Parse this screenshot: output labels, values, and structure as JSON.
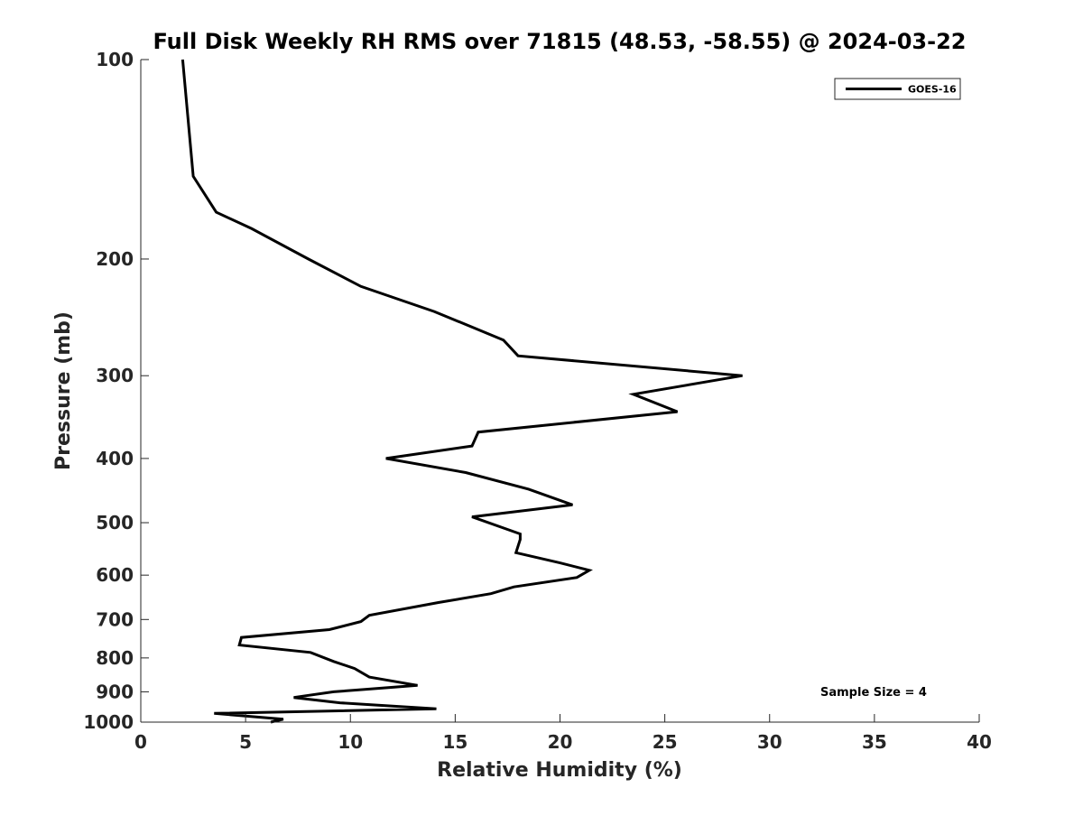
{
  "chart_data": {
    "type": "line",
    "title": "Full Disk Weekly RH RMS over 71815 (48.53, -58.55) @ 2024-03-22",
    "xlabel": "Relative Humidity (%)",
    "ylabel": "Pressure (mb)",
    "xlim": [
      0,
      40
    ],
    "ylim": [
      100,
      1000
    ],
    "y_scale": "log",
    "y_inverted": true,
    "x_ticks": [
      0,
      5,
      10,
      15,
      20,
      25,
      30,
      35,
      40
    ],
    "y_ticks": [
      100,
      200,
      300,
      400,
      500,
      600,
      700,
      800,
      900,
      1000
    ],
    "grid": false,
    "legend_position": "top-right",
    "series": [
      {
        "name": "GOES-16",
        "color": "#000000",
        "x": [
          2.0,
          2.5,
          3.6,
          5.3,
          8.0,
          10.5,
          14.0,
          17.3,
          18.0,
          28.7,
          23.5,
          25.6,
          16.1,
          15.8,
          11.7,
          15.5,
          18.5,
          20.6,
          15.8,
          18.1,
          18.1,
          17.9,
          20.0,
          21.4,
          20.8,
          17.8,
          16.7,
          14.2,
          10.9,
          10.5,
          9.0,
          4.8,
          4.7,
          8.1,
          9.2,
          10.2,
          10.9,
          13.2,
          9.2,
          7.3,
          9.5,
          14.1,
          3.5,
          6.8,
          6.2
        ],
        "y": [
          100,
          150,
          170,
          180,
          200,
          220,
          240,
          265,
          280,
          300,
          320,
          340,
          365,
          383,
          400,
          420,
          445,
          470,
          490,
          520,
          530,
          555,
          575,
          590,
          605,
          625,
          640,
          660,
          690,
          705,
          725,
          745,
          765,
          785,
          810,
          830,
          855,
          880,
          900,
          918,
          935,
          955,
          970,
          990,
          1000
        ]
      }
    ],
    "annotations": [
      "Sample Size = 4"
    ]
  }
}
